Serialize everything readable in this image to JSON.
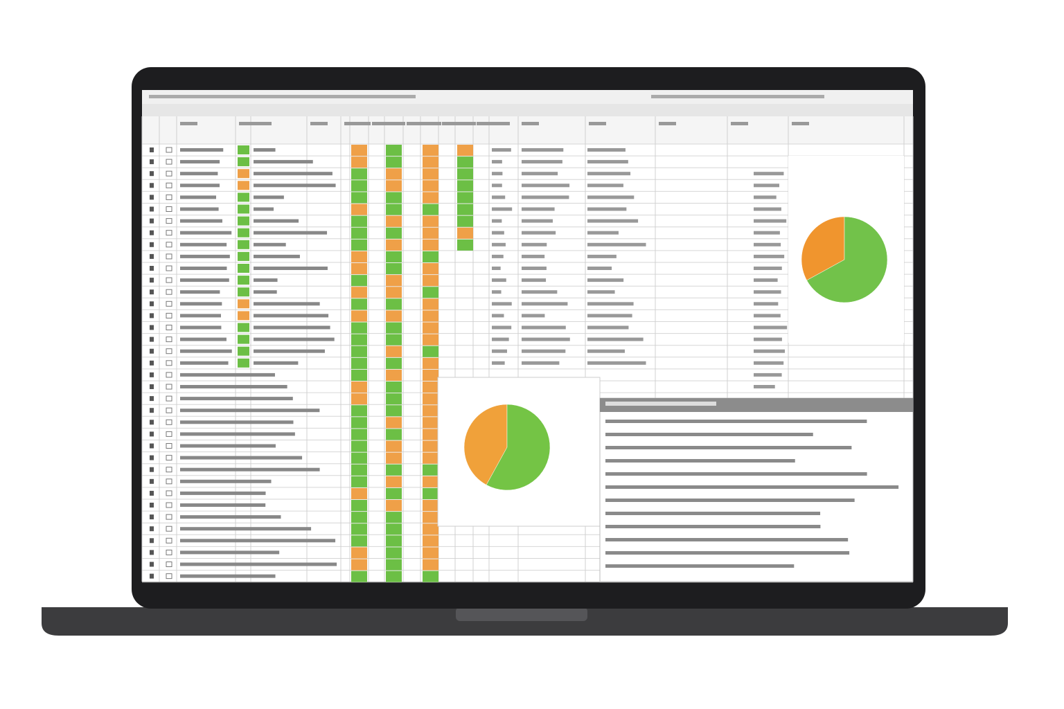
{
  "chart_data": [
    {
      "type": "pie",
      "values": [
        33,
        67
      ],
      "colors": [
        "#f0952e",
        "#72c24a"
      ]
    },
    {
      "type": "pie",
      "values": [
        42,
        58
      ],
      "colors": [
        "#f0a13a",
        "#74c445"
      ]
    }
  ]
}
